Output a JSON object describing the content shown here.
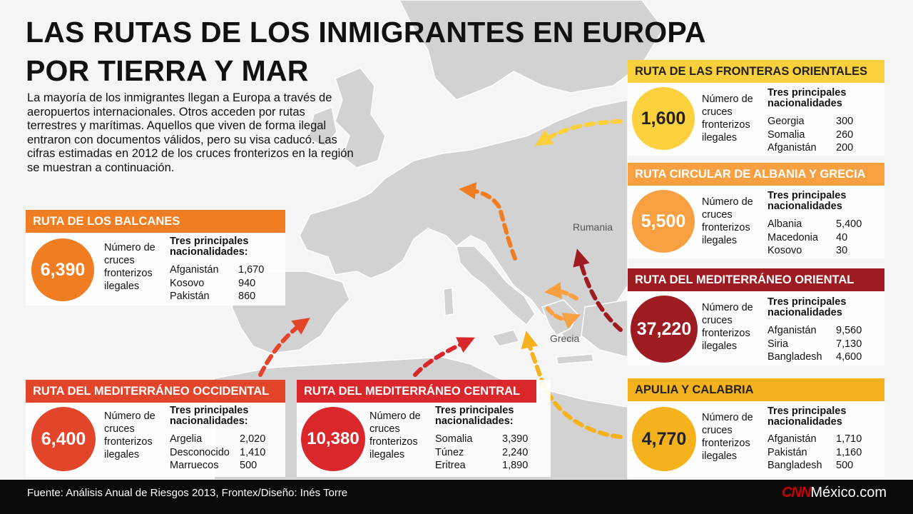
{
  "title_line1": "LAS RUTAS DE LOS INMIGRANTES EN EUROPA",
  "title_line2": "POR TIERRA Y MAR",
  "intro": "La mayoría de los inmigrantes llegan a Europa a través de aeropuertos internacionales. Otros acceden por rutas terrestres y marítimas. Aquellos que viven de forma ilegal entraron con documentos válidos, pero su visa caducó. Las cifras estimadas en 2012 de los cruces fronterizos en la región se muestran a continuación.",
  "labels": {
    "crossings": "Número de cruces fronterizos ilegales",
    "top3": "Tres principales nacionalidades:",
    "top3_short": "Tres principales nacionalidades"
  },
  "places": {
    "rumania": "Rumania",
    "grecia": "Grecia"
  },
  "colors": {
    "orange": "#f07d22",
    "light_orange": "#f6a042",
    "red_orange": "#e3452a",
    "red": "#d9272c",
    "dark_red": "#9e1b21",
    "yellow": "#fbd03d",
    "gold": "#f6b21c",
    "land": "#d2d2d2",
    "sea": "#f5f5f5"
  },
  "routes": {
    "balcanes": {
      "name": "RUTA DE LOS BALCANES",
      "value": "6,390",
      "nationalities": [
        {
          "country": "Afganistán",
          "count": "1,670"
        },
        {
          "country": "Kosovo",
          "count": "940"
        },
        {
          "country": "Pakistán",
          "count": "860"
        }
      ]
    },
    "occidental": {
      "name": "RUTA DEL MEDITERRÁNEO OCCIDENTAL",
      "value": "6,400",
      "nationalities": [
        {
          "country": "Argelia",
          "count": "2,020"
        },
        {
          "country": "Desconocido",
          "count": "1,410"
        },
        {
          "country": "Marruecos",
          "count": "500"
        }
      ]
    },
    "central": {
      "name": "RUTA DEL MEDITERRÁNEO CENTRAL",
      "value": "10,380",
      "nationalities": [
        {
          "country": "Somalia",
          "count": "3,390"
        },
        {
          "country": "Túnez",
          "count": "2,240"
        },
        {
          "country": "Eritrea",
          "count": "1,890"
        }
      ]
    },
    "orientales": {
      "name": "RUTA DE LAS FRONTERAS ORIENTALES",
      "value": "1,600",
      "nationalities": [
        {
          "country": "Georgia",
          "count": "300"
        },
        {
          "country": "Somalia",
          "count": "260"
        },
        {
          "country": "Afganistán",
          "count": "200"
        }
      ]
    },
    "albania": {
      "name": "RUTA CIRCULAR DE ALBANIA Y GRECIA",
      "value": "5,500",
      "nationalities": [
        {
          "country": "Albania",
          "count": "5,400"
        },
        {
          "country": "Macedonia",
          "count": "40"
        },
        {
          "country": "Kosovo",
          "count": "30"
        }
      ]
    },
    "oriental": {
      "name": "RUTA DEL MEDITERRÁNEO ORIENTAL",
      "value": "37,220",
      "nationalities": [
        {
          "country": "Afganistán",
          "count": "9,560"
        },
        {
          "country": "Siria",
          "count": "7,130"
        },
        {
          "country": "Bangladesh",
          "count": "4,600"
        }
      ]
    },
    "apulia": {
      "name": "APULIA Y CALABRIA",
      "value": "4,770",
      "nationalities": [
        {
          "country": "Afganistán",
          "count": "1,710"
        },
        {
          "country": "Pakistán",
          "count": "1,160"
        },
        {
          "country": "Bangladesh",
          "count": "500"
        }
      ]
    }
  },
  "footer": {
    "source": "Fuente: Análisis Anual de Riesgos 2013, Frontex/Diseño: Inés Torre",
    "brand_cnn": "CNN",
    "brand_rest": "México.com"
  }
}
